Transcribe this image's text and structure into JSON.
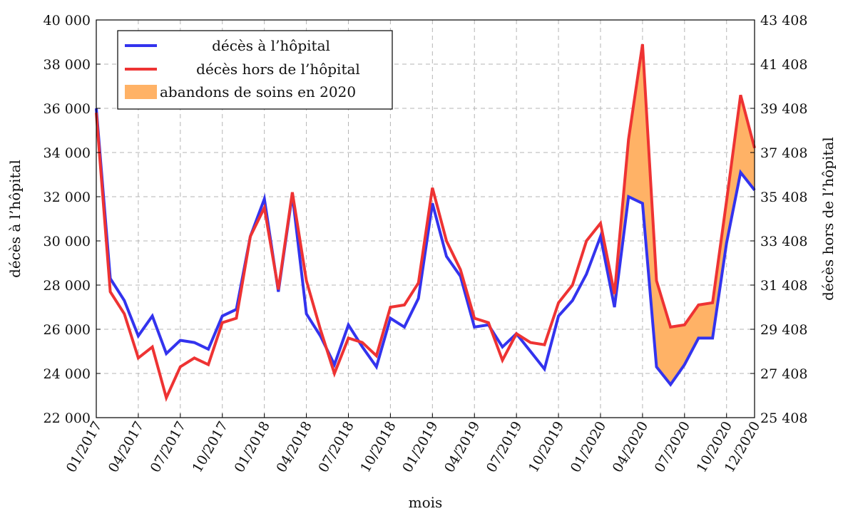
{
  "chart_data": {
    "type": "line",
    "title": "",
    "xlabel": "mois",
    "ylabel": "décès à l’hôpital",
    "ylabel_right": "décès hors de l’hôpital",
    "grid": true,
    "legend_position": "top-left",
    "ylim": [
      22000,
      40000
    ],
    "ylim_right": [
      25408,
      43408
    ],
    "yticks": [
      "22 000",
      "24 000",
      "26 000",
      "28 000",
      "30 000",
      "32 000",
      "34 000",
      "36 000",
      "38 000",
      "40 000"
    ],
    "yticks_right": [
      "25 408",
      "27 408",
      "29 408",
      "31 408",
      "33 408",
      "35 408",
      "37 408",
      "39 408",
      "41 408",
      "43 408"
    ],
    "xticks": [
      "01/2017",
      "04/2017",
      "07/2017",
      "10/2017",
      "01/2018",
      "04/2018",
      "07/2018",
      "10/2018",
      "01/2019",
      "04/2019",
      "07/2019",
      "10/2019",
      "01/2020",
      "04/2020",
      "07/2020",
      "10/2020",
      "12/2020"
    ],
    "xtick_months": [
      0,
      3,
      6,
      9,
      12,
      15,
      18,
      21,
      24,
      27,
      30,
      33,
      36,
      39,
      42,
      45,
      47
    ],
    "x": [
      "01/2017",
      "02/2017",
      "03/2017",
      "04/2017",
      "05/2017",
      "06/2017",
      "07/2017",
      "08/2017",
      "09/2017",
      "10/2017",
      "11/2017",
      "12/2017",
      "01/2018",
      "02/2018",
      "03/2018",
      "04/2018",
      "05/2018",
      "06/2018",
      "07/2018",
      "08/2018",
      "09/2018",
      "10/2018",
      "11/2018",
      "12/2018",
      "01/2019",
      "02/2019",
      "03/2019",
      "04/2019",
      "05/2019",
      "06/2019",
      "07/2019",
      "08/2019",
      "09/2019",
      "10/2019",
      "11/2019",
      "12/2019",
      "01/2020",
      "02/2020",
      "03/2020",
      "04/2020",
      "05/2020",
      "06/2020",
      "07/2020",
      "08/2020",
      "09/2020",
      "10/2020",
      "11/2020",
      "12/2020"
    ],
    "series": [
      {
        "name": "décès à l’hôpital",
        "color": "#3333ee",
        "axis": "left",
        "values": [
          36000,
          28300,
          27300,
          25700,
          26600,
          24900,
          25500,
          25400,
          25100,
          26600,
          26900,
          30200,
          31900,
          27700,
          32100,
          26700,
          25700,
          24400,
          26200,
          25200,
          24300,
          26500,
          26100,
          27400,
          31700,
          29300,
          28400,
          26100,
          26200,
          25200,
          25800,
          25000,
          24200,
          26600,
          27300,
          28500,
          30200,
          27000,
          32000,
          31700,
          24300,
          23500,
          24400,
          25600,
          25600,
          29900,
          33100,
          32300
        ]
      },
      {
        "name": "décès hors de l’hôpital",
        "color": "#ee3333",
        "axis": "right",
        "values": [
          39208,
          31108,
          30108,
          28108,
          28608,
          26308,
          27708,
          28108,
          27808,
          29708,
          29908,
          33608,
          34908,
          31208,
          35608,
          31608,
          29408,
          27408,
          29008,
          28808,
          28208,
          30408,
          30508,
          31508,
          35808,
          33408,
          32108,
          29908,
          29708,
          28008,
          29208,
          28808,
          28708,
          30608,
          31408,
          33408,
          34208,
          31008,
          38008,
          42308,
          31608,
          29508,
          29608,
          30508,
          30608,
          35208,
          40008,
          37608
        ]
      }
    ],
    "fill": {
      "name": "abandons de soins en 2020",
      "color": "#ffb266",
      "from_month": 36,
      "to_month": 47
    }
  }
}
